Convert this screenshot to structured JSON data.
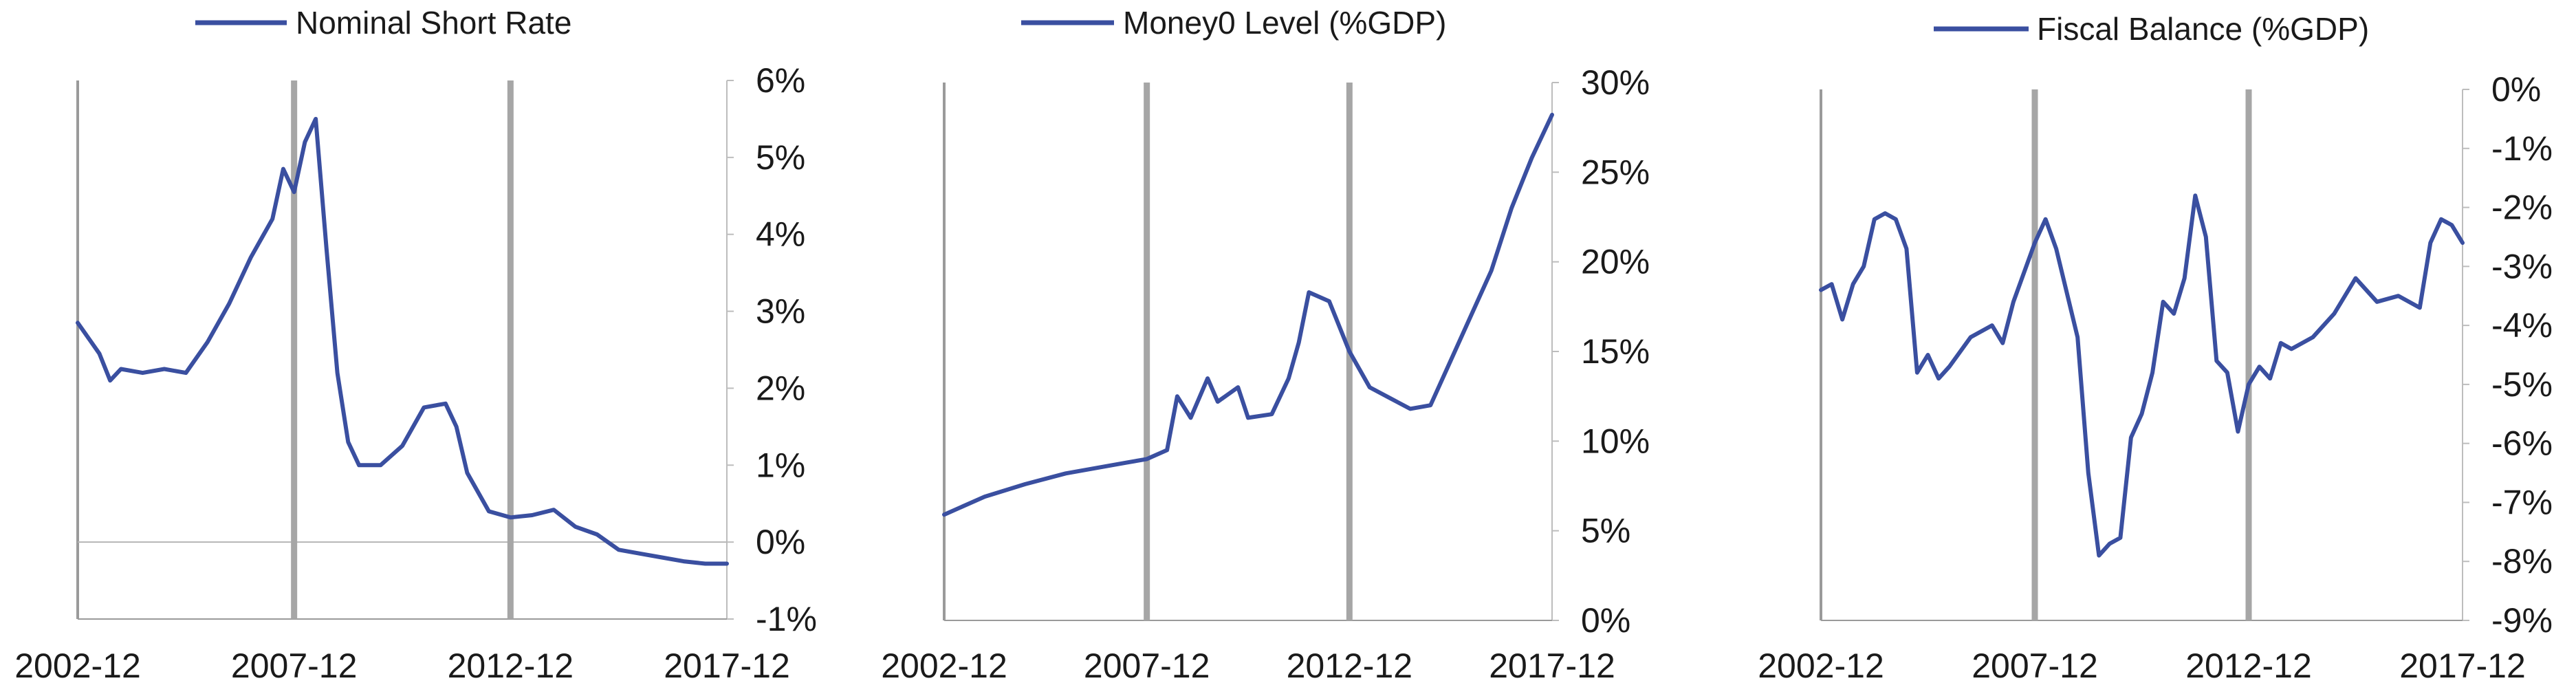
{
  "chart_data": [
    {
      "type": "line",
      "series": [
        {
          "name": "Nominal Short Rate",
          "x": [
            "2002-12",
            "2003-06",
            "2003-09",
            "2003-12",
            "2004-06",
            "2004-12",
            "2005-06",
            "2005-12",
            "2006-06",
            "2006-12",
            "2007-06",
            "2007-09",
            "2007-12",
            "2008-03",
            "2008-06",
            "2008-09",
            "2008-12",
            "2009-03",
            "2009-06",
            "2009-12",
            "2010-06",
            "2010-12",
            "2011-06",
            "2011-09",
            "2011-12",
            "2012-06",
            "2012-12",
            "2013-06",
            "2013-12",
            "2014-06",
            "2014-12",
            "2015-06",
            "2015-12",
            "2016-06",
            "2016-12",
            "2017-06",
            "2017-12"
          ],
          "values": [
            2.85,
            2.45,
            2.1,
            2.25,
            2.2,
            2.25,
            2.2,
            2.6,
            3.1,
            3.7,
            4.2,
            4.85,
            4.55,
            5.2,
            5.5,
            3.8,
            2.2,
            1.3,
            1.0,
            1.0,
            1.25,
            1.75,
            1.8,
            1.5,
            0.9,
            0.4,
            0.32,
            0.35,
            0.42,
            0.2,
            0.1,
            -0.1,
            -0.15,
            -0.2,
            -0.25,
            -0.28,
            -0.28
          ]
        }
      ],
      "xticks": [
        "2002-12",
        "2007-12",
        "2012-12",
        "2017-12"
      ],
      "yticks": [
        "6%",
        "5%",
        "4%",
        "3%",
        "2%",
        "1%",
        "0%",
        "-1%"
      ],
      "ylim": [
        -1,
        6
      ],
      "xlim": [
        "2002-12",
        "2017-12"
      ],
      "vlines": [
        "2007-12",
        "2012-12"
      ],
      "zero_line": true,
      "legend_position": "top",
      "line_color": "#3a4fa0",
      "vline_color": "#a6a6a6"
    },
    {
      "type": "line",
      "series": [
        {
          "name": "Money0 Level (%GDP)",
          "x": [
            "2002-12",
            "2003-12",
            "2004-12",
            "2005-12",
            "2006-12",
            "2007-06",
            "2007-12",
            "2008-06",
            "2008-09",
            "2009-01",
            "2009-06",
            "2009-09",
            "2010-03",
            "2010-06",
            "2011-01",
            "2011-06",
            "2011-09",
            "2011-12",
            "2012-06",
            "2012-12",
            "2013-06",
            "2013-12",
            "2014-06",
            "2014-12",
            "2015-06",
            "2015-12",
            "2016-06",
            "2016-12",
            "2017-06",
            "2017-12"
          ],
          "values": [
            5.9,
            6.9,
            7.6,
            8.2,
            8.6,
            8.8,
            9.0,
            9.5,
            12.5,
            11.3,
            13.5,
            12.2,
            13.0,
            11.3,
            11.5,
            13.5,
            15.5,
            18.3,
            17.8,
            15.0,
            13.0,
            12.4,
            11.8,
            12.0,
            14.5,
            17.0,
            19.5,
            23.0,
            25.8,
            28.2
          ]
        }
      ],
      "xticks": [
        "2002-12",
        "2007-12",
        "2012-12",
        "2017-12"
      ],
      "yticks": [
        "30%",
        "25%",
        "20%",
        "15%",
        "10%",
        "5%",
        "0%"
      ],
      "ylim": [
        0,
        30
      ],
      "xlim": [
        "2002-12",
        "2017-12"
      ],
      "vlines": [
        "2007-12",
        "2012-12"
      ],
      "zero_line": false,
      "legend_position": "top",
      "line_color": "#3a4fa0",
      "vline_color": "#a6a6a6"
    },
    {
      "type": "line",
      "series": [
        {
          "name": "Fiscal Balance (%GDP)",
          "x": [
            "2002-12",
            "2003-03",
            "2003-06",
            "2003-09",
            "2003-12",
            "2004-03",
            "2004-06",
            "2004-09",
            "2004-12",
            "2005-03",
            "2005-06",
            "2005-09",
            "2005-12",
            "2006-06",
            "2006-12",
            "2007-03",
            "2007-06",
            "2007-12",
            "2008-03",
            "2008-06",
            "2008-12",
            "2009-03",
            "2009-06",
            "2009-09",
            "2009-12",
            "2010-03",
            "2010-06",
            "2010-09",
            "2010-12",
            "2011-03",
            "2011-06",
            "2011-09",
            "2011-12",
            "2012-03",
            "2012-06",
            "2012-09",
            "2012-12",
            "2013-03",
            "2013-06",
            "2013-09",
            "2013-12",
            "2014-06",
            "2014-12",
            "2015-06",
            "2015-12",
            "2016-06",
            "2016-12",
            "2017-03",
            "2017-06",
            "2017-09",
            "2017-12"
          ],
          "values": [
            -3.4,
            -3.3,
            -3.9,
            -3.3,
            -3.0,
            -2.2,
            -2.1,
            -2.2,
            -2.7,
            -4.8,
            -4.5,
            -4.9,
            -4.7,
            -4.2,
            -4.0,
            -4.3,
            -3.6,
            -2.6,
            -2.2,
            -2.7,
            -4.2,
            -6.5,
            -7.9,
            -7.7,
            -7.6,
            -5.9,
            -5.5,
            -4.8,
            -3.6,
            -3.8,
            -3.2,
            -1.8,
            -2.5,
            -4.6,
            -4.8,
            -5.8,
            -5.0,
            -4.7,
            -4.9,
            -4.3,
            -4.4,
            -4.2,
            -3.8,
            -3.2,
            -3.6,
            -3.5,
            -3.7,
            -2.6,
            -2.2,
            -2.3,
            -2.6
          ]
        }
      ],
      "xticks": [
        "2002-12",
        "2007-12",
        "2012-12",
        "2017-12"
      ],
      "yticks": [
        "0%",
        "-1%",
        "-2%",
        "-3%",
        "-4%",
        "-5%",
        "-6%",
        "-7%",
        "-8%",
        "-9%"
      ],
      "ylim": [
        -9,
        0
      ],
      "xlim": [
        "2002-12",
        "2017-12"
      ],
      "vlines": [
        "2007-12",
        "2012-12"
      ],
      "zero_line": false,
      "legend_position": "top",
      "line_color": "#3a4fa0",
      "vline_color": "#a6a6a6"
    }
  ]
}
